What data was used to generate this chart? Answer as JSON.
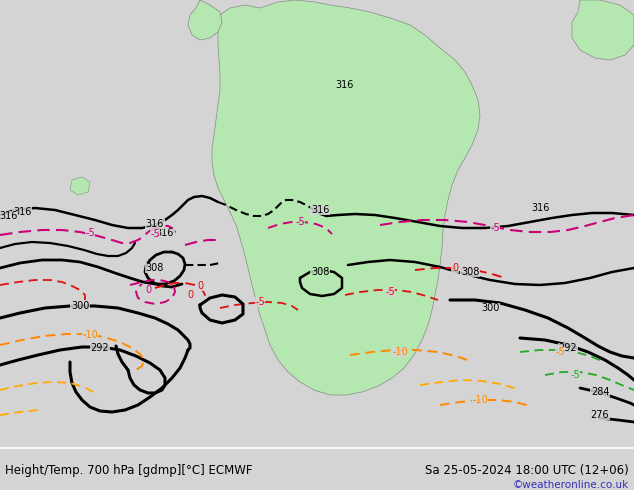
{
  "title_left": "Height/Temp. 700 hPa [gdmp][°C] ECMWF",
  "title_right": "Sa 25-05-2024 18:00 UTC (12+06)",
  "watermark": "©weatheronline.co.uk",
  "background_color": "#d4d4d4",
  "land_color": "#b5e8b0",
  "border_color": "#888888",
  "text_color": "#000000",
  "watermark_color": "#3333bb",
  "title_fontsize": 8.5,
  "watermark_fontsize": 7.5,
  "fig_width": 6.34,
  "fig_height": 4.9,
  "dpi": 100
}
